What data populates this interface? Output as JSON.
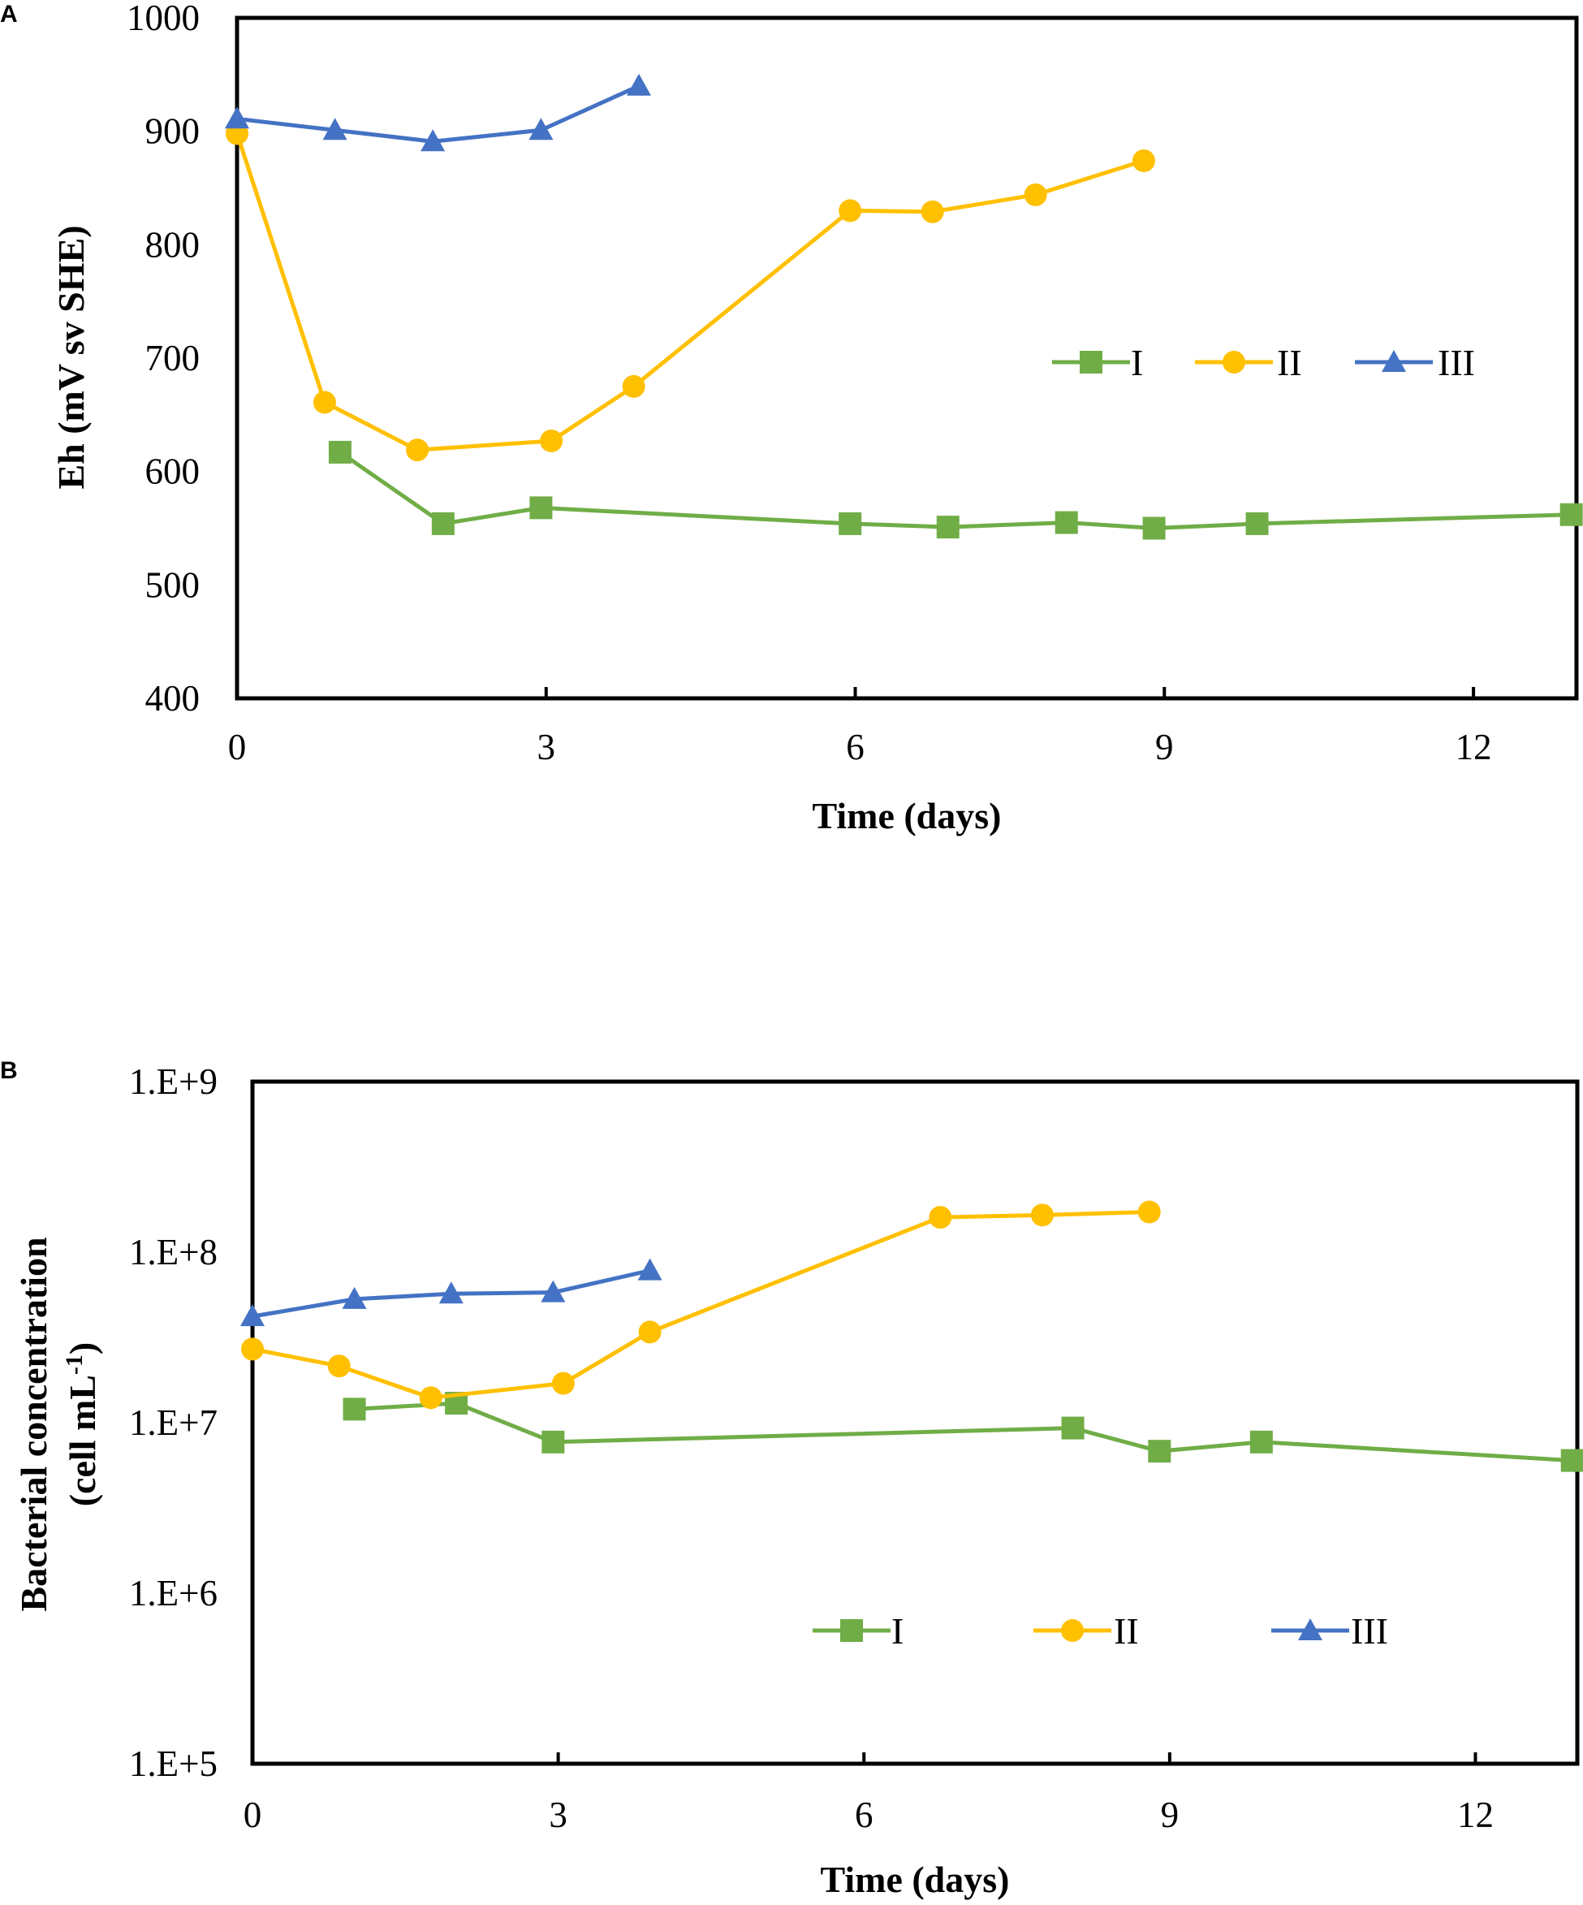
{
  "colors": {
    "I": "#70ad47",
    "II": "#ffc000",
    "III": "#4472c4",
    "axis": "#000000"
  },
  "chart_data": [
    {
      "panel": "A",
      "type": "line",
      "scale": "linear",
      "xlabel": "Time (days)",
      "ylabel": "Eh (mV sv SHE)",
      "xlim": [
        0,
        13
      ],
      "ylim": [
        400,
        1000
      ],
      "xticks": [
        0,
        3,
        6,
        9,
        12
      ],
      "xtick_labels": [
        "0",
        "3",
        "6",
        "9",
        "12"
      ],
      "yticks": [
        400,
        500,
        600,
        700,
        800,
        900,
        1000
      ],
      "ytick_labels": [
        "400",
        "500",
        "600",
        "700",
        "800",
        "900",
        "1000"
      ],
      "legend_position": "center-right",
      "series": [
        {
          "name": "I",
          "marker": "square",
          "color": "#70ad47",
          "x": [
            1.0,
            2.0,
            2.95,
            5.95,
            6.9,
            8.05,
            8.9,
            9.9,
            12.95
          ],
          "y": [
            617,
            554,
            568,
            554,
            551,
            555,
            550,
            554,
            562
          ]
        },
        {
          "name": "II",
          "marker": "circle",
          "color": "#ffc000",
          "x": [
            0,
            0.85,
            1.75,
            3.05,
            3.85,
            5.95,
            6.75,
            7.75,
            8.8
          ],
          "y": [
            898,
            661,
            619,
            627,
            675,
            830,
            829,
            844,
            874
          ]
        },
        {
          "name": "III",
          "marker": "triangle",
          "color": "#4472c4",
          "x": [
            0,
            0.95,
            1.9,
            2.95,
            3.9
          ],
          "y": [
            911,
            901,
            891,
            901,
            940
          ]
        }
      ]
    },
    {
      "panel": "B",
      "type": "line",
      "scale": "log",
      "xlabel": "Time (days)",
      "ylabel_line1": "Bacterial concentration",
      "ylabel_line2": "(cell mL",
      "ylabel_sup": "-1",
      "ylabel_close": ")",
      "xlim": [
        0,
        13
      ],
      "ylim": [
        100000,
        1000000000
      ],
      "xticks": [
        0,
        3,
        6,
        9,
        12
      ],
      "xtick_labels": [
        "0",
        "3",
        "6",
        "9",
        "12"
      ],
      "yticks": [
        100000,
        1000000,
        10000000,
        100000000,
        1000000000
      ],
      "ytick_labels": [
        "1.E+5",
        "1.E+6",
        "1.E+7",
        "1.E+8",
        "1.E+9"
      ],
      "legend_position": "bottom-right",
      "series": [
        {
          "name": "I",
          "marker": "square",
          "color": "#70ad47",
          "x": [
            1.0,
            2.0,
            2.95,
            8.05,
            8.9,
            9.9,
            12.95
          ],
          "y": [
            12000000,
            13000000,
            7700000,
            9300000,
            6800000,
            7700000,
            6000000
          ]
        },
        {
          "name": "II",
          "marker": "circle",
          "color": "#ffc000",
          "x": [
            0,
            0.85,
            1.75,
            3.05,
            3.9,
            6.75,
            7.75,
            8.8
          ],
          "y": [
            27000000,
            21500000,
            14000000,
            17000000,
            34000000,
            160000000,
            165000000,
            172000000
          ]
        },
        {
          "name": "III",
          "marker": "triangle",
          "color": "#4472c4",
          "x": [
            0,
            1.0,
            1.95,
            2.95,
            3.9
          ],
          "y": [
            42000000,
            53000000,
            57000000,
            58000000,
            78000000
          ]
        }
      ]
    }
  ]
}
